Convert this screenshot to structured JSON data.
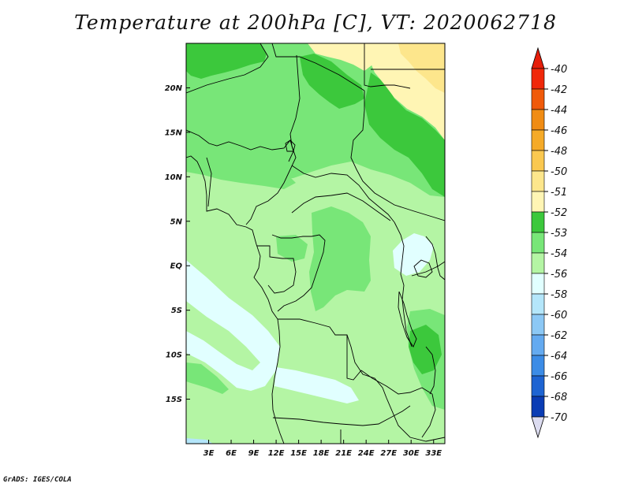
{
  "title": "Temperature at 200hPa [C], VT: 2020062718",
  "credit": "GrADS: IGES/COLA",
  "map": {
    "lon_range": [
      0,
      34.5
    ],
    "lat_range": [
      -20,
      25
    ],
    "lon_ticks": [
      {
        "value": 3,
        "label": "3E"
      },
      {
        "value": 6,
        "label": "6E"
      },
      {
        "value": 9,
        "label": "9E"
      },
      {
        "value": 12,
        "label": "12E"
      },
      {
        "value": 15,
        "label": "15E"
      },
      {
        "value": 18,
        "label": "18E"
      },
      {
        "value": 21,
        "label": "21E"
      },
      {
        "value": 24,
        "label": "24E"
      },
      {
        "value": 27,
        "label": "27E"
      },
      {
        "value": 30,
        "label": "30E"
      },
      {
        "value": 33,
        "label": "33E"
      }
    ],
    "lat_ticks": [
      {
        "value": 20,
        "label": "20N"
      },
      {
        "value": 15,
        "label": "15N"
      },
      {
        "value": 10,
        "label": "10N"
      },
      {
        "value": 5,
        "label": "5N"
      },
      {
        "value": 0,
        "label": "EQ"
      },
      {
        "value": -5,
        "label": "5S"
      },
      {
        "value": -10,
        "label": "10S"
      },
      {
        "value": -15,
        "label": "15S"
      }
    ]
  },
  "colorbar": {
    "levels": [
      {
        "label": "-40",
        "color": "#f0280a"
      },
      {
        "label": "-42",
        "color": "#f05a0a"
      },
      {
        "label": "-44",
        "color": "#f08c14"
      },
      {
        "label": "-46",
        "color": "#f5aa28"
      },
      {
        "label": "-48",
        "color": "#fac850"
      },
      {
        "label": "-50",
        "color": "#fde68c"
      },
      {
        "label": "-51",
        "color": "#fff5b4"
      },
      {
        "label": "-52",
        "color": "#3cc83c"
      },
      {
        "label": "-53",
        "color": "#78e678"
      },
      {
        "label": "-54",
        "color": "#b4f5a4"
      },
      {
        "label": "-56",
        "color": "#e1ffff"
      },
      {
        "label": "-58",
        "color": "#b4e6fa"
      },
      {
        "label": "-60",
        "color": "#8cc8f5"
      },
      {
        "label": "-62",
        "color": "#64aaf0"
      },
      {
        "label": "-64",
        "color": "#3c8ce6"
      },
      {
        "label": "-66",
        "color": "#1e64d2"
      },
      {
        "label": "-68",
        "color": "#0a3cb4"
      },
      {
        "label": "-70",
        "color": "#000a5a"
      }
    ],
    "top_arrow_color": "#e61e0a",
    "bottom_arrow_color": "#dcdcf0"
  },
  "colors": {
    "green_dark": "#3cc83c",
    "green_mid": "#78e678",
    "green_light": "#b4f5a4",
    "cyan_light": "#e1ffff",
    "yellow_light": "#fff5b4",
    "yellow": "#fde68c"
  }
}
